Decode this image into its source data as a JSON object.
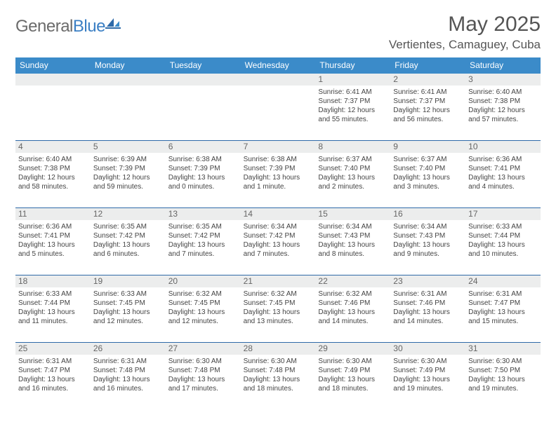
{
  "brand": {
    "name_gray": "General",
    "name_blue": "Blue"
  },
  "title": {
    "month": "May 2025",
    "location": "Vertientes, Camaguey, Cuba"
  },
  "colors": {
    "header_bg": "#3b8bc9",
    "header_text": "#ffffff",
    "sep_line": "#2e6aa8",
    "gray_band": "#eceded",
    "body_text": "#444444",
    "daynum_text": "#666666",
    "title_text": "#555555"
  },
  "day_labels": [
    "Sunday",
    "Monday",
    "Tuesday",
    "Wednesday",
    "Thursday",
    "Friday",
    "Saturday"
  ],
  "weeks": [
    [
      {
        "n": "",
        "sr": "",
        "ss": "",
        "dl": ""
      },
      {
        "n": "",
        "sr": "",
        "ss": "",
        "dl": ""
      },
      {
        "n": "",
        "sr": "",
        "ss": "",
        "dl": ""
      },
      {
        "n": "",
        "sr": "",
        "ss": "",
        "dl": ""
      },
      {
        "n": "1",
        "sr": "Sunrise: 6:41 AM",
        "ss": "Sunset: 7:37 PM",
        "dl": "Daylight: 12 hours and 55 minutes."
      },
      {
        "n": "2",
        "sr": "Sunrise: 6:41 AM",
        "ss": "Sunset: 7:37 PM",
        "dl": "Daylight: 12 hours and 56 minutes."
      },
      {
        "n": "3",
        "sr": "Sunrise: 6:40 AM",
        "ss": "Sunset: 7:38 PM",
        "dl": "Daylight: 12 hours and 57 minutes."
      }
    ],
    [
      {
        "n": "4",
        "sr": "Sunrise: 6:40 AM",
        "ss": "Sunset: 7:38 PM",
        "dl": "Daylight: 12 hours and 58 minutes."
      },
      {
        "n": "5",
        "sr": "Sunrise: 6:39 AM",
        "ss": "Sunset: 7:39 PM",
        "dl": "Daylight: 12 hours and 59 minutes."
      },
      {
        "n": "6",
        "sr": "Sunrise: 6:38 AM",
        "ss": "Sunset: 7:39 PM",
        "dl": "Daylight: 13 hours and 0 minutes."
      },
      {
        "n": "7",
        "sr": "Sunrise: 6:38 AM",
        "ss": "Sunset: 7:39 PM",
        "dl": "Daylight: 13 hours and 1 minute."
      },
      {
        "n": "8",
        "sr": "Sunrise: 6:37 AM",
        "ss": "Sunset: 7:40 PM",
        "dl": "Daylight: 13 hours and 2 minutes."
      },
      {
        "n": "9",
        "sr": "Sunrise: 6:37 AM",
        "ss": "Sunset: 7:40 PM",
        "dl": "Daylight: 13 hours and 3 minutes."
      },
      {
        "n": "10",
        "sr": "Sunrise: 6:36 AM",
        "ss": "Sunset: 7:41 PM",
        "dl": "Daylight: 13 hours and 4 minutes."
      }
    ],
    [
      {
        "n": "11",
        "sr": "Sunrise: 6:36 AM",
        "ss": "Sunset: 7:41 PM",
        "dl": "Daylight: 13 hours and 5 minutes."
      },
      {
        "n": "12",
        "sr": "Sunrise: 6:35 AM",
        "ss": "Sunset: 7:42 PM",
        "dl": "Daylight: 13 hours and 6 minutes."
      },
      {
        "n": "13",
        "sr": "Sunrise: 6:35 AM",
        "ss": "Sunset: 7:42 PM",
        "dl": "Daylight: 13 hours and 7 minutes."
      },
      {
        "n": "14",
        "sr": "Sunrise: 6:34 AM",
        "ss": "Sunset: 7:42 PM",
        "dl": "Daylight: 13 hours and 7 minutes."
      },
      {
        "n": "15",
        "sr": "Sunrise: 6:34 AM",
        "ss": "Sunset: 7:43 PM",
        "dl": "Daylight: 13 hours and 8 minutes."
      },
      {
        "n": "16",
        "sr": "Sunrise: 6:34 AM",
        "ss": "Sunset: 7:43 PM",
        "dl": "Daylight: 13 hours and 9 minutes."
      },
      {
        "n": "17",
        "sr": "Sunrise: 6:33 AM",
        "ss": "Sunset: 7:44 PM",
        "dl": "Daylight: 13 hours and 10 minutes."
      }
    ],
    [
      {
        "n": "18",
        "sr": "Sunrise: 6:33 AM",
        "ss": "Sunset: 7:44 PM",
        "dl": "Daylight: 13 hours and 11 minutes."
      },
      {
        "n": "19",
        "sr": "Sunrise: 6:33 AM",
        "ss": "Sunset: 7:45 PM",
        "dl": "Daylight: 13 hours and 12 minutes."
      },
      {
        "n": "20",
        "sr": "Sunrise: 6:32 AM",
        "ss": "Sunset: 7:45 PM",
        "dl": "Daylight: 13 hours and 12 minutes."
      },
      {
        "n": "21",
        "sr": "Sunrise: 6:32 AM",
        "ss": "Sunset: 7:45 PM",
        "dl": "Daylight: 13 hours and 13 minutes."
      },
      {
        "n": "22",
        "sr": "Sunrise: 6:32 AM",
        "ss": "Sunset: 7:46 PM",
        "dl": "Daylight: 13 hours and 14 minutes."
      },
      {
        "n": "23",
        "sr": "Sunrise: 6:31 AM",
        "ss": "Sunset: 7:46 PM",
        "dl": "Daylight: 13 hours and 14 minutes."
      },
      {
        "n": "24",
        "sr": "Sunrise: 6:31 AM",
        "ss": "Sunset: 7:47 PM",
        "dl": "Daylight: 13 hours and 15 minutes."
      }
    ],
    [
      {
        "n": "25",
        "sr": "Sunrise: 6:31 AM",
        "ss": "Sunset: 7:47 PM",
        "dl": "Daylight: 13 hours and 16 minutes."
      },
      {
        "n": "26",
        "sr": "Sunrise: 6:31 AM",
        "ss": "Sunset: 7:48 PM",
        "dl": "Daylight: 13 hours and 16 minutes."
      },
      {
        "n": "27",
        "sr": "Sunrise: 6:30 AM",
        "ss": "Sunset: 7:48 PM",
        "dl": "Daylight: 13 hours and 17 minutes."
      },
      {
        "n": "28",
        "sr": "Sunrise: 6:30 AM",
        "ss": "Sunset: 7:48 PM",
        "dl": "Daylight: 13 hours and 18 minutes."
      },
      {
        "n": "29",
        "sr": "Sunrise: 6:30 AM",
        "ss": "Sunset: 7:49 PM",
        "dl": "Daylight: 13 hours and 18 minutes."
      },
      {
        "n": "30",
        "sr": "Sunrise: 6:30 AM",
        "ss": "Sunset: 7:49 PM",
        "dl": "Daylight: 13 hours and 19 minutes."
      },
      {
        "n": "31",
        "sr": "Sunrise: 6:30 AM",
        "ss": "Sunset: 7:50 PM",
        "dl": "Daylight: 13 hours and 19 minutes."
      }
    ]
  ]
}
